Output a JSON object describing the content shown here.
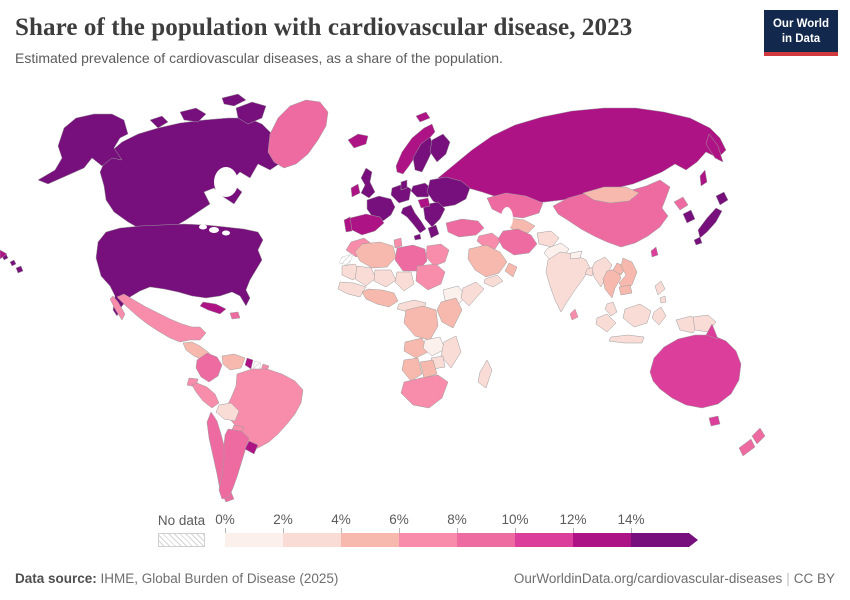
{
  "header": {
    "title": "Share of the population with cardiovascular disease, 2023",
    "subtitle": "Estimated prevalence of cardiovascular diseases, as a share of the population.",
    "logo": {
      "line1": "Our World",
      "line2": "in Data",
      "bg_color": "#12294d",
      "accent_color": "#d0383e"
    }
  },
  "legend": {
    "no_data_label": "No data",
    "tick_labels": [
      "0%",
      "2%",
      "4%",
      "6%",
      "8%",
      "10%",
      "12%",
      "14%"
    ],
    "bins": [
      {
        "range": "0-2%",
        "color": "#fcf0ed"
      },
      {
        "range": "2-4%",
        "color": "#fadcd7"
      },
      {
        "range": "4-6%",
        "color": "#f7b9ae"
      },
      {
        "range": "6-8%",
        "color": "#f78cab"
      },
      {
        "range": "8-10%",
        "color": "#ee6ba2"
      },
      {
        "range": "10-12%",
        "color": "#dc3e9b"
      },
      {
        "range": "12-14%",
        "color": "#ae1386"
      },
      {
        "range": "14%+",
        "color": "#77107c"
      }
    ]
  },
  "map": {
    "border_color": "#9d9d9d",
    "no_data_pattern": "diagonal-hatch",
    "regions": {
      "russia": 6,
      "canada": 7,
      "usa": 7,
      "alaska": 7,
      "hawaii": 7,
      "arctic-islands": 7,
      "greenland": 4,
      "iceland": 6,
      "mexico": 3,
      "central-america": 2,
      "cuba": 6,
      "hispaniola": 4,
      "colombia": 4,
      "venezuela": 2,
      "guyana": 6,
      "suriname": "no_data",
      "french-guiana": 3,
      "ecuador": 3,
      "peru": 3,
      "brazil": 3,
      "bolivia": 1,
      "paraguay": 3,
      "chile": 4,
      "argentina": 4,
      "uruguay": 6,
      "uk": 7,
      "ireland": 6,
      "norway": 6,
      "svalbard": 6,
      "sweden": 7,
      "finland": 7,
      "denmark": 7,
      "germany": 7,
      "france": 7,
      "spain": 6,
      "portugal": 6,
      "italy": 7,
      "poland": 7,
      "eastern-europe": 7,
      "balkans": 7,
      "central-balkans": 6,
      "greece": 7,
      "kazakhstan": 4,
      "central-asia": 2,
      "turkey": 4,
      "levant": 3,
      "iran": 4,
      "saudi-arabia": 2,
      "yemen": 1,
      "oman": 2,
      "afghanistan": 1,
      "pakistan": 0,
      "morocco": 3,
      "western-sahara": "no_data",
      "algeria": 2,
      "tunisia": 3,
      "libya": 4,
      "egypt": 3,
      "mauritania": 1,
      "mali": 1,
      "niger": 1,
      "chad": 1,
      "sudan": 3,
      "west-africa": 1,
      "nigeria": 2,
      "ethiopia": 0,
      "somalia": 1,
      "central-africa": 1,
      "drc": 2,
      "east-africa": 2,
      "angola": 2,
      "zambia": 0,
      "mozambique": 1,
      "zimbabwe": 1,
      "namibia": 2,
      "botswana": 2,
      "south-africa": 3,
      "madagascar": 1,
      "india": 1,
      "nepal": 0,
      "bangladesh": 1,
      "sri-lanka": 3,
      "myanmar": 1,
      "thailand": 2,
      "laos": 2,
      "vietnam": 2,
      "cambodia": 2,
      "malaysia": 1,
      "indonesia": 1,
      "philippines": 1,
      "new-guinea-west": 1,
      "png": 1,
      "china": 4,
      "mongolia": 2,
      "north-korea": 4,
      "south-korea": 7,
      "japan": 7,
      "taiwan": 5,
      "australia": 5,
      "tasmania": 5,
      "new-zealand": 4,
      "pacific-fragment": 6
    }
  },
  "footer": {
    "source_label": "Data source:",
    "source_text": " IHME, Global Burden of Disease (2025)",
    "url_text": "OurWorldinData.org/cardiovascular-diseases",
    "license_text": "CC BY"
  }
}
